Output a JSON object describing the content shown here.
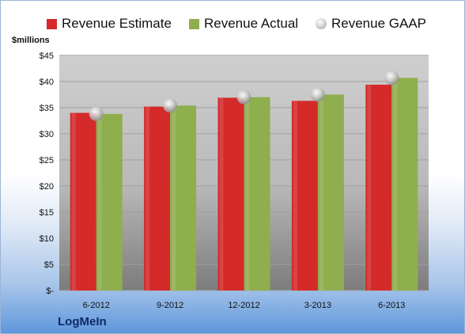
{
  "company": "LogMeIn",
  "chart_data": {
    "type": "bar",
    "ylabel": "$millions",
    "ylim": [
      0,
      45
    ],
    "yticks": [
      {
        "value": 0,
        "label": "$-"
      },
      {
        "value": 5,
        "label": "$5"
      },
      {
        "value": 10,
        "label": "$10"
      },
      {
        "value": 15,
        "label": "$15"
      },
      {
        "value": 20,
        "label": "$20"
      },
      {
        "value": 25,
        "label": "$25"
      },
      {
        "value": 30,
        "label": "$30"
      },
      {
        "value": 35,
        "label": "$35"
      },
      {
        "value": 40,
        "label": "$40"
      },
      {
        "value": 45,
        "label": "$45"
      }
    ],
    "categories": [
      "6-2012",
      "9-2012",
      "12-2012",
      "3-2013",
      "6-2013"
    ],
    "legend_position": "top",
    "grid": true,
    "series": [
      {
        "name": "Revenue Estimate",
        "kind": "bar",
        "color": "#d42a2a",
        "values": [
          34.0,
          35.2,
          36.9,
          36.3,
          39.4
        ]
      },
      {
        "name": "Revenue Actual",
        "kind": "bar",
        "color": "#8fae4e",
        "values": [
          33.8,
          35.4,
          37.0,
          37.5,
          40.7
        ]
      },
      {
        "name": "Revenue GAAP",
        "kind": "marker",
        "color": "#b8b8b8",
        "values": [
          33.8,
          35.4,
          37.0,
          37.5,
          40.7
        ]
      }
    ]
  }
}
